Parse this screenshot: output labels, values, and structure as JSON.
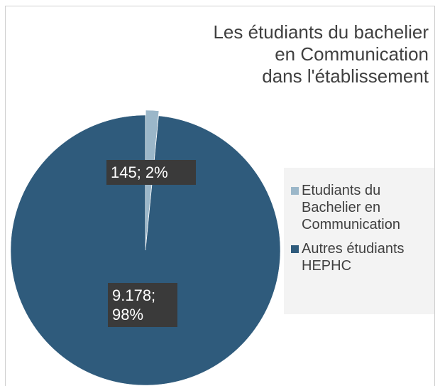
{
  "chart_data": {
    "type": "pie",
    "title": [
      "Les étudiants du bachelier",
      "en Communication",
      "dans l'établissement"
    ],
    "categories": [
      "Etudiants du Bachelier en Communication",
      "Autres étudiants HEPHC"
    ],
    "values": [
      145,
      9178
    ],
    "value_labels": [
      "145; 2%",
      "9.178; 98%"
    ],
    "colors": [
      "#9bb7c9",
      "#2f5b7c"
    ],
    "legend": "right"
  }
}
